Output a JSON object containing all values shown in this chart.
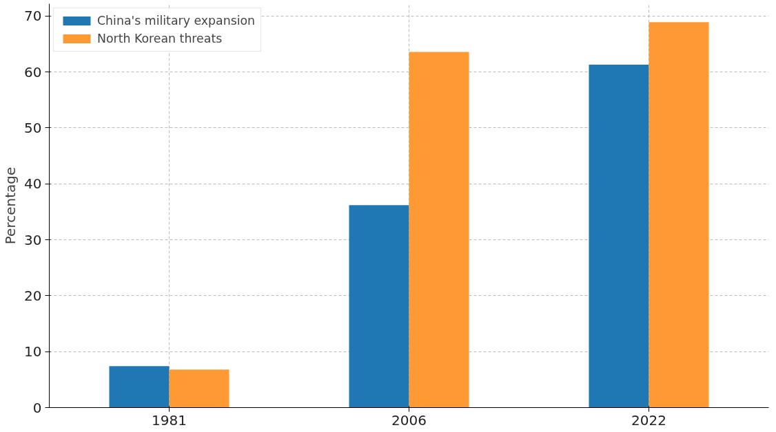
{
  "chart_data": {
    "type": "bar",
    "ylabel": "Percentage",
    "categories": [
      "1981",
      "2006",
      "2022"
    ],
    "series": [
      {
        "name": "China's military expansion",
        "color": "#1f77b4",
        "values": [
          7.4,
          36.2,
          61.3
        ]
      },
      {
        "name": "North Korean threats",
        "color": "#ff9933",
        "values": [
          6.8,
          63.6,
          68.9
        ]
      }
    ],
    "ylim": [
      0,
      72.2
    ],
    "yticks": [
      0,
      10,
      20,
      30,
      40,
      50,
      60,
      70
    ],
    "grid": true,
    "legend": "top left"
  }
}
